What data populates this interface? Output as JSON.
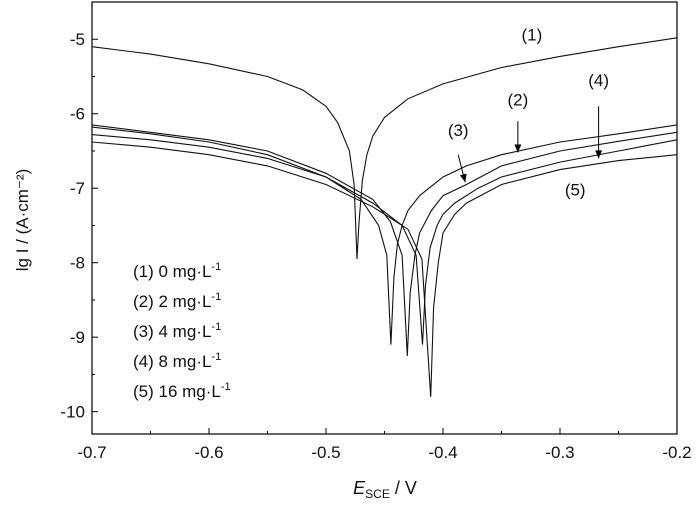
{
  "chart_data": {
    "type": "line",
    "xlabel": {
      "main": "E",
      "sub": "SCE",
      "unit": " / V"
    },
    "ylabel": "lg I / (A·cm⁻²)",
    "xlim": [
      -0.7,
      -0.2
    ],
    "ylim": [
      -10.3,
      -4.5
    ],
    "x_ticks": [
      -0.7,
      -0.6,
      -0.5,
      -0.4,
      -0.3,
      -0.2
    ],
    "x_tick_labels": [
      "-0.7",
      "-0.6",
      "-0.5",
      "-0.4",
      "-0.3",
      "-0.2"
    ],
    "y_ticks": [
      -10,
      -9,
      -8,
      -7,
      -6,
      -5
    ],
    "y_tick_labels": [
      "-10",
      "-9",
      "-8",
      "-7",
      "-6",
      "-5"
    ],
    "grid": false,
    "legend_position": "bottom-left",
    "legend": [
      {
        "label": "(1) 0 mg·L",
        "sup": "-1"
      },
      {
        "label": "(2) 2 mg·L",
        "sup": "-1"
      },
      {
        "label": "(3) 4 mg·L",
        "sup": "-1"
      },
      {
        "label": "(4) 8 mg·L",
        "sup": "-1"
      },
      {
        "label": "(5) 16 mg·L",
        "sup": "-1"
      }
    ],
    "series": [
      {
        "name": "(1)",
        "x": [
          -0.7,
          -0.65,
          -0.6,
          -0.55,
          -0.52,
          -0.5,
          -0.49,
          -0.48,
          -0.476,
          -0.4735,
          -0.472,
          -0.469,
          -0.465,
          -0.46,
          -0.45,
          -0.43,
          -0.4,
          -0.35,
          -0.3,
          -0.25,
          -0.2
        ],
        "y": [
          -5.1,
          -5.2,
          -5.33,
          -5.5,
          -5.68,
          -5.9,
          -6.12,
          -6.5,
          -6.95,
          -7.95,
          -7.5,
          -6.9,
          -6.55,
          -6.3,
          -6.05,
          -5.8,
          -5.6,
          -5.38,
          -5.23,
          -5.1,
          -4.98
        ]
      },
      {
        "name": "(2)",
        "x": [
          -0.7,
          -0.65,
          -0.6,
          -0.55,
          -0.5,
          -0.47,
          -0.455,
          -0.448,
          -0.4445,
          -0.442,
          -0.439,
          -0.435,
          -0.43,
          -0.42,
          -0.4,
          -0.38,
          -0.35,
          -0.3,
          -0.25,
          -0.2
        ],
        "y": [
          -6.18,
          -6.27,
          -6.38,
          -6.55,
          -6.85,
          -7.15,
          -7.5,
          -7.9,
          -9.1,
          -8.2,
          -7.75,
          -7.5,
          -7.3,
          -7.1,
          -6.85,
          -6.7,
          -6.55,
          -6.38,
          -6.27,
          -6.15
        ]
      },
      {
        "name": "(3)",
        "x": [
          -0.7,
          -0.65,
          -0.6,
          -0.55,
          -0.5,
          -0.46,
          -0.445,
          -0.435,
          -0.4305,
          -0.428,
          -0.424,
          -0.42,
          -0.41,
          -0.4,
          -0.38,
          -0.35,
          -0.3,
          -0.25,
          -0.2
        ],
        "y": [
          -6.15,
          -6.25,
          -6.35,
          -6.5,
          -6.8,
          -7.15,
          -7.45,
          -7.9,
          -9.25,
          -8.4,
          -7.9,
          -7.6,
          -7.3,
          -7.1,
          -6.95,
          -6.7,
          -6.5,
          -6.37,
          -6.25
        ]
      },
      {
        "name": "(4)",
        "x": [
          -0.7,
          -0.65,
          -0.6,
          -0.55,
          -0.5,
          -0.46,
          -0.435,
          -0.423,
          -0.4175,
          -0.415,
          -0.411,
          -0.405,
          -0.4,
          -0.39,
          -0.37,
          -0.35,
          -0.3,
          -0.25,
          -0.2
        ],
        "y": [
          -6.28,
          -6.35,
          -6.45,
          -6.6,
          -6.85,
          -7.2,
          -7.5,
          -7.9,
          -9.1,
          -8.3,
          -7.8,
          -7.5,
          -7.35,
          -7.2,
          -7.0,
          -6.85,
          -6.65,
          -6.5,
          -6.35
        ]
      },
      {
        "name": "(5)",
        "x": [
          -0.7,
          -0.65,
          -0.6,
          -0.55,
          -0.5,
          -0.46,
          -0.43,
          -0.418,
          -0.4105,
          -0.408,
          -0.404,
          -0.4,
          -0.39,
          -0.38,
          -0.35,
          -0.3,
          -0.25,
          -0.2
        ],
        "y": [
          -6.38,
          -6.45,
          -6.55,
          -6.7,
          -6.95,
          -7.25,
          -7.55,
          -7.95,
          -9.8,
          -8.6,
          -8.0,
          -7.6,
          -7.35,
          -7.2,
          -6.95,
          -6.75,
          -6.63,
          -6.55
        ]
      }
    ],
    "annotations": [
      {
        "text": "(1)",
        "x": -0.324,
        "y": -5.02
      },
      {
        "text": "(2)",
        "x": -0.336,
        "y": -5.89
      },
      {
        "text": "(3)",
        "x": -0.387,
        "y": -6.3
      },
      {
        "text": "(4)",
        "x": -0.267,
        "y": -5.63
      },
      {
        "text": "(5)",
        "x": -0.287,
        "y": -7.1
      }
    ],
    "arrows": [
      {
        "from": [
          -0.336,
          -6.1
        ],
        "to": [
          -0.336,
          -6.52
        ]
      },
      {
        "from": [
          -0.387,
          -6.55
        ],
        "to": [
          -0.381,
          -6.92
        ]
      },
      {
        "from": [
          -0.267,
          -5.9
        ],
        "to": [
          -0.267,
          -6.6
        ]
      }
    ]
  }
}
